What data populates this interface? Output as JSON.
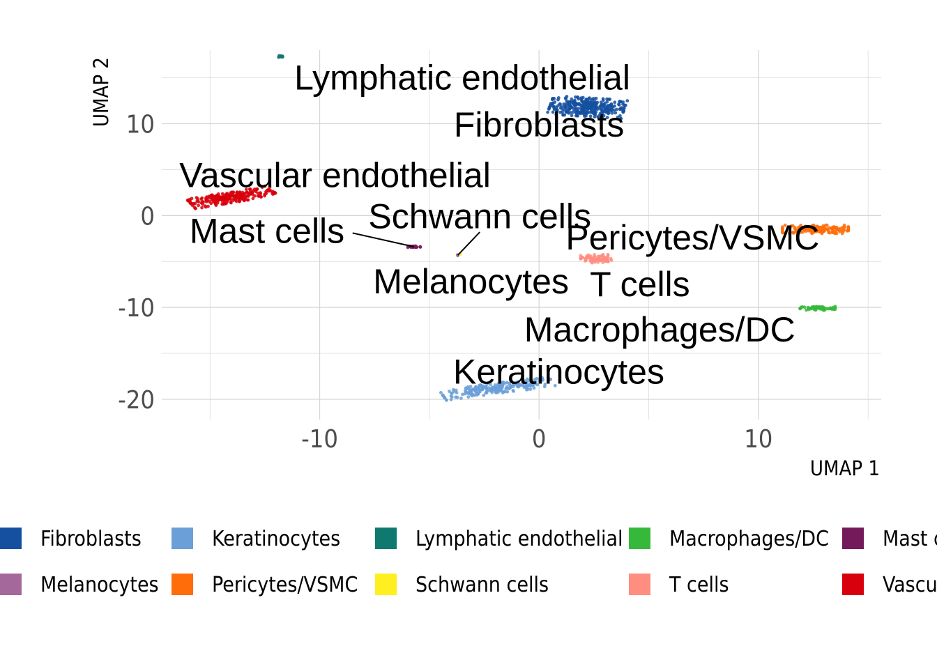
{
  "chart_data": {
    "type": "scatter",
    "title": "",
    "xlabel": "UMAP 1",
    "ylabel": "UMAP 2",
    "xlim": [
      -17.2,
      15.6
    ],
    "ylim": [
      -22.2,
      18.0
    ],
    "xticks": [
      -10,
      0,
      10
    ],
    "yticks": [
      -20,
      -10,
      0,
      10
    ],
    "grid": true,
    "legend_position": "bottom",
    "series": [
      {
        "name": "Fibroblasts",
        "color": "#1550a0",
        "center": [
          2.2,
          11.8
        ],
        "spread": [
          1.7,
          1.0
        ],
        "tilt": -0.15,
        "count": 320
      },
      {
        "name": "Keratinocytes",
        "color": "#6a9fd8",
        "center": [
          -1.9,
          -18.8
        ],
        "spread": [
          2.6,
          0.55
        ],
        "tilt": 0.3,
        "count": 220
      },
      {
        "name": "Lymphatic endothelial",
        "color": "#10796f",
        "center": [
          -11.8,
          17.3
        ],
        "spread": [
          0.15,
          0.12
        ],
        "tilt": 0,
        "count": 12
      },
      {
        "name": "Macrophages/DC",
        "color": "#36b83a",
        "center": [
          12.7,
          -10.1
        ],
        "spread": [
          0.8,
          0.2
        ],
        "tilt": 0,
        "count": 60
      },
      {
        "name": "Mast cells",
        "color": "#741a5b",
        "center": [
          -5.7,
          -3.4
        ],
        "spread": [
          0.3,
          0.12
        ],
        "tilt": 0,
        "count": 25
      },
      {
        "name": "Melanocytes",
        "color": "#a4689b",
        "center": [
          -3.7,
          -4.3
        ],
        "spread": [
          0.05,
          0.05
        ],
        "tilt": 0,
        "count": 3
      },
      {
        "name": "Pericytes/VSMC",
        "color": "#ff6d0b",
        "center": [
          12.6,
          -1.5
        ],
        "spread": [
          1.5,
          0.45
        ],
        "tilt": 0,
        "count": 160
      },
      {
        "name": "Schwann cells",
        "color": "#ffef20",
        "center": [
          -3.6,
          -4.2
        ],
        "spread": [
          0.02,
          0.02
        ],
        "tilt": 0,
        "count": 1
      },
      {
        "name": "T cells",
        "color": "#ff8d80",
        "center": [
          2.6,
          -4.7
        ],
        "spread": [
          0.7,
          0.45
        ],
        "tilt": 0,
        "count": 70
      },
      {
        "name": "Vascular endothelial",
        "color": "#d8000c",
        "center": [
          -14.0,
          2.0
        ],
        "spread": [
          2.0,
          0.55
        ],
        "tilt": 0.38,
        "count": 240
      }
    ],
    "cluster_labels": [
      {
        "text": "Lymphatic endothelial",
        "x": -3.5,
        "y": 15.0
      },
      {
        "text": "Fibroblasts",
        "x": 0.0,
        "y": 9.9
      },
      {
        "text": "Vascular endothelial",
        "x": -9.3,
        "y": 4.4
      },
      {
        "text": "Schwann cells",
        "x": -2.7,
        "y": -0.1
      },
      {
        "text": "Mast cells",
        "x": -12.4,
        "y": -1.7
      },
      {
        "text": "Pericytes/VSMC",
        "x": 7.0,
        "y": -2.4
      },
      {
        "text": "Melanocytes",
        "x": -3.1,
        "y": -7.2
      },
      {
        "text": "T cells",
        "x": 4.6,
        "y": -7.5
      },
      {
        "text": "Macrophages/DC",
        "x": 5.5,
        "y": -12.4
      },
      {
        "text": "Keratinocytes",
        "x": 0.9,
        "y": -17.0
      }
    ],
    "connectors": [
      {
        "from": [
          -8.5,
          -1.9
        ],
        "to": [
          -5.7,
          -3.4
        ]
      },
      {
        "from": [
          -2.7,
          -1.8
        ],
        "to": [
          -3.7,
          -4.3
        ]
      }
    ]
  },
  "legend": {
    "rows": [
      [
        "Fibroblasts",
        "Keratinocytes",
        "Lymphatic endothelial",
        "Macrophages/DC",
        "Mast cells"
      ],
      [
        "Melanocytes",
        "Pericytes/VSMC",
        "Schwann cells",
        "T cells",
        "Vascular endothelial"
      ]
    ]
  }
}
